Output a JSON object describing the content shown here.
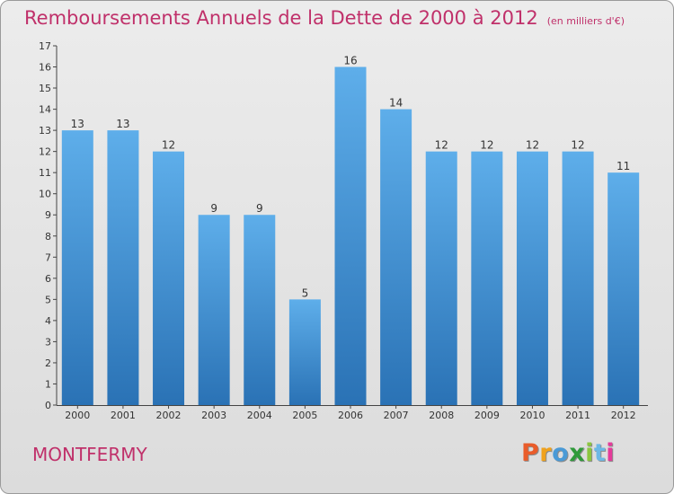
{
  "title": "Remboursements Annuels de la Dette de 2000 à 2012",
  "unit": "(en milliers d'€)",
  "commune": "MONTFERMY",
  "logo": "Proxiti",
  "colors": {
    "title": "#c0306a",
    "bar_top": "#5eaeea",
    "bar_bottom": "#2a72b5",
    "logo_letters": [
      "#e95c2a",
      "#f0a21c",
      "#4a9ad6",
      "#2f9a3a",
      "#8cc63f",
      "#6cb8e6",
      "#e53a9a"
    ]
  },
  "chart_data": {
    "type": "bar",
    "categories": [
      "2000",
      "2001",
      "2002",
      "2003",
      "2004",
      "2005",
      "2006",
      "2007",
      "2008",
      "2009",
      "2010",
      "2011",
      "2012"
    ],
    "values": [
      13,
      13,
      12,
      9,
      9,
      5,
      16,
      14,
      12,
      12,
      12,
      12,
      11
    ],
    "ylim": [
      0,
      17
    ],
    "yticks": [
      "0",
      "1",
      "2",
      "3",
      "4",
      "5",
      "6",
      "7",
      "8",
      "9",
      "10",
      "11",
      "12",
      "13",
      "14",
      "15",
      "16",
      "17"
    ],
    "grid": false,
    "data_labels": true
  }
}
